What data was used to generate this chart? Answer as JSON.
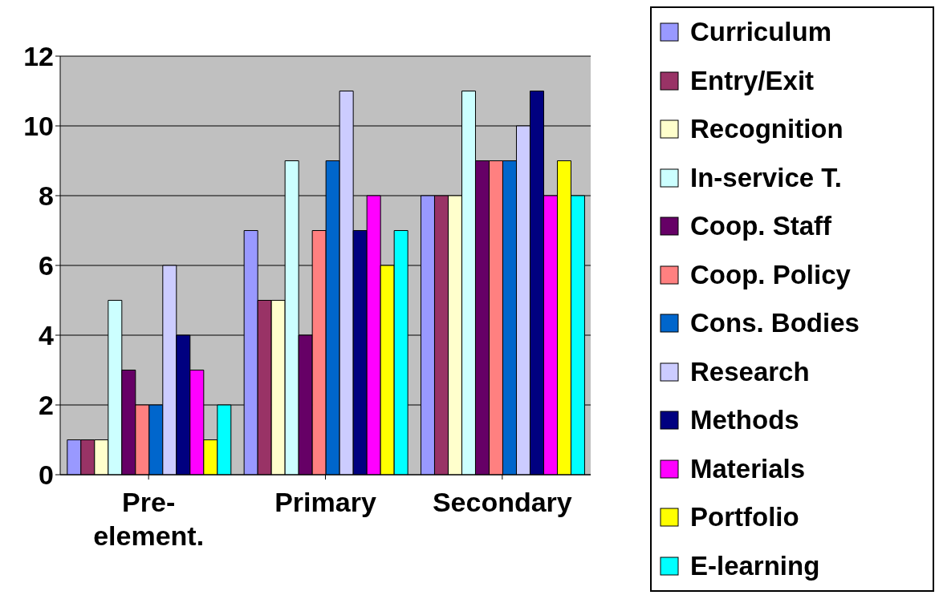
{
  "chart_data": {
    "type": "bar",
    "categories": [
      "Pre-element.",
      "Primary",
      "Secondary"
    ],
    "series": [
      {
        "name": "Curriculum",
        "color": "#9999ff",
        "values": [
          1,
          7,
          8
        ]
      },
      {
        "name": "Entry/Exit",
        "color": "#993366",
        "values": [
          1,
          5,
          8
        ]
      },
      {
        "name": "Recognition",
        "color": "#ffffcc",
        "values": [
          1,
          5,
          8
        ]
      },
      {
        "name": "In-service T.",
        "color": "#ccffff",
        "values": [
          5,
          9,
          11
        ]
      },
      {
        "name": "Coop. Staff",
        "color": "#660066",
        "values": [
          3,
          4,
          9
        ]
      },
      {
        "name": "Coop. Policy",
        "color": "#ff8080",
        "values": [
          2,
          7,
          9
        ]
      },
      {
        "name": "Cons. Bodies",
        "color": "#0066cc",
        "values": [
          2,
          9,
          9
        ]
      },
      {
        "name": "Research",
        "color": "#ccccff",
        "values": [
          6,
          11,
          10
        ]
      },
      {
        "name": "Methods",
        "color": "#000080",
        "values": [
          4,
          7,
          11
        ]
      },
      {
        "name": "Materials",
        "color": "#ff00ff",
        "values": [
          3,
          8,
          8
        ]
      },
      {
        "name": "Portfolio",
        "color": "#ffff00",
        "values": [
          1,
          6,
          9
        ]
      },
      {
        "name": "E-learning",
        "color": "#00ffff",
        "values": [
          2,
          7,
          8
        ]
      }
    ],
    "ylim": [
      0,
      12
    ],
    "yticks": [
      0,
      2,
      4,
      6,
      8,
      10,
      12
    ],
    "grid": "y",
    "legend": "right"
  }
}
